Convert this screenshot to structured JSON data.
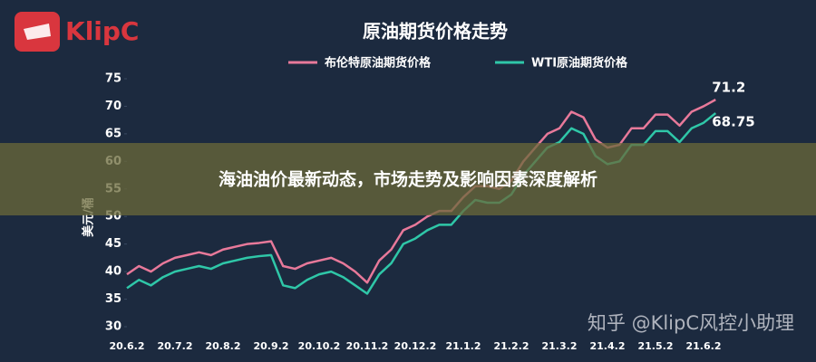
{
  "logo": "KlipC",
  "banner": "海油油价最新动态，市场走势及影响因素深度解析",
  "watermark": "知乎 @KlipC风控小助理",
  "chart_data": {
    "type": "line",
    "title": "原油期货价格走势",
    "y_label": "美元/桶",
    "categories": [
      "20.6.2",
      null,
      null,
      null,
      "20.7.2",
      null,
      null,
      null,
      "20.8.2",
      null,
      null,
      null,
      "20.9.2",
      null,
      null,
      null,
      "20.10.2",
      null,
      null,
      null,
      "20.11.2",
      null,
      null,
      null,
      "20.12.2",
      null,
      null,
      null,
      "21.1.2",
      null,
      null,
      null,
      "21.2.2",
      null,
      null,
      null,
      "21.3.2",
      null,
      null,
      null,
      "21.4.2",
      null,
      null,
      null,
      "21.5.2",
      null,
      null,
      null,
      "21.6.2",
      null
    ],
    "series": [
      {
        "name": "布伦特原油期货价格",
        "color": "#e8799a",
        "values": [
          39.5,
          41,
          40,
          41.5,
          42.5,
          43,
          43.5,
          43,
          44,
          44.5,
          45,
          45.2,
          45.5,
          41,
          40.5,
          41.5,
          42,
          42.5,
          41.5,
          40,
          38,
          42,
          44,
          47.5,
          48.5,
          50,
          51,
          51,
          53.5,
          55.5,
          55.5,
          55,
          56.5,
          60,
          62.5,
          65,
          66,
          69,
          68,
          64,
          62.5,
          63,
          66,
          66,
          68.5,
          68.5,
          66.5,
          69,
          70,
          71.2
        ]
      },
      {
        "name": "WTI原油期货价格",
        "color": "#2fc7a8",
        "values": [
          37,
          38.5,
          37.5,
          39,
          40,
          40.5,
          41,
          40.5,
          41.5,
          42,
          42.5,
          42.8,
          43,
          37.5,
          37,
          38.5,
          39.5,
          40,
          39,
          37.5,
          36,
          39.5,
          41.5,
          45,
          46,
          47.5,
          48.5,
          48.5,
          51,
          53,
          52.5,
          52.5,
          54,
          57.5,
          60,
          62.5,
          63.5,
          66,
          65,
          61,
          59.5,
          60,
          63,
          63,
          65.5,
          65.5,
          63.5,
          66,
          67,
          68.75
        ]
      }
    ],
    "ylim": [
      30,
      75
    ],
    "yticks": [
      30,
      35,
      40,
      45,
      50,
      55,
      60,
      65,
      70,
      75
    ]
  }
}
